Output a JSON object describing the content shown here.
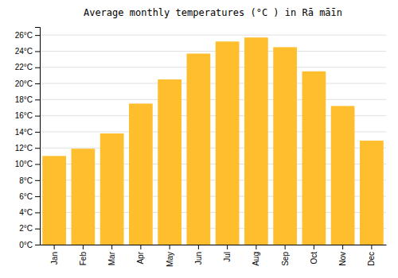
{
  "chart_data": {
    "type": "bar",
    "title": "Average monthly temperatures (°C ) in Rā māīn",
    "categories": [
      "Jan",
      "Feb",
      "Mar",
      "Apr",
      "May",
      "Jun",
      "Jul",
      "Aug",
      "Sep",
      "Oct",
      "Nov",
      "Dec"
    ],
    "values": [
      11.0,
      11.9,
      13.8,
      17.5,
      20.5,
      23.7,
      25.2,
      25.7,
      24.5,
      21.5,
      17.2,
      12.9
    ],
    "color": "#FFBE2D",
    "ylim": [
      0,
      27
    ],
    "yticks": [
      {
        "value": 0,
        "label": "0°C"
      },
      {
        "value": 2,
        "label": "2°C"
      },
      {
        "value": 4,
        "label": "4°C"
      },
      {
        "value": 6,
        "label": "6°C"
      },
      {
        "value": 8,
        "label": "8°C"
      },
      {
        "value": 10,
        "label": "10°C"
      },
      {
        "value": 12,
        "label": "12°C"
      },
      {
        "value": 14,
        "label": "14°C"
      },
      {
        "value": 16,
        "label": "16°C"
      },
      {
        "value": 18,
        "label": "18°C"
      },
      {
        "value": 20,
        "label": "20°C"
      },
      {
        "value": 22,
        "label": "22°C"
      },
      {
        "value": 24,
        "label": "24°C"
      },
      {
        "value": 26,
        "label": "26°C"
      }
    ],
    "grid": true
  }
}
